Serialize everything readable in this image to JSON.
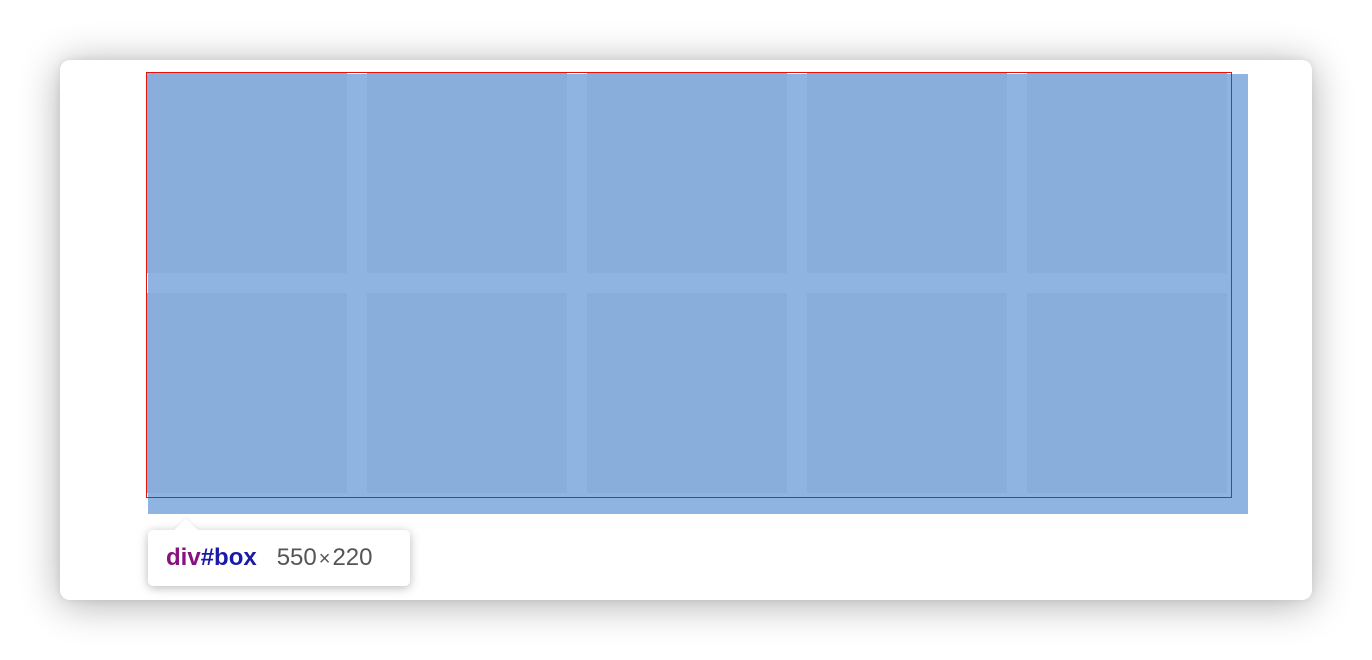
{
  "inspector": {
    "element_tag": "div",
    "element_id": "#box",
    "width": "550",
    "times": "×",
    "height": "220"
  },
  "colors": {
    "box_background": "#8fb4e1",
    "cell_background": "#8aaedb",
    "outline": "#e2140f"
  }
}
